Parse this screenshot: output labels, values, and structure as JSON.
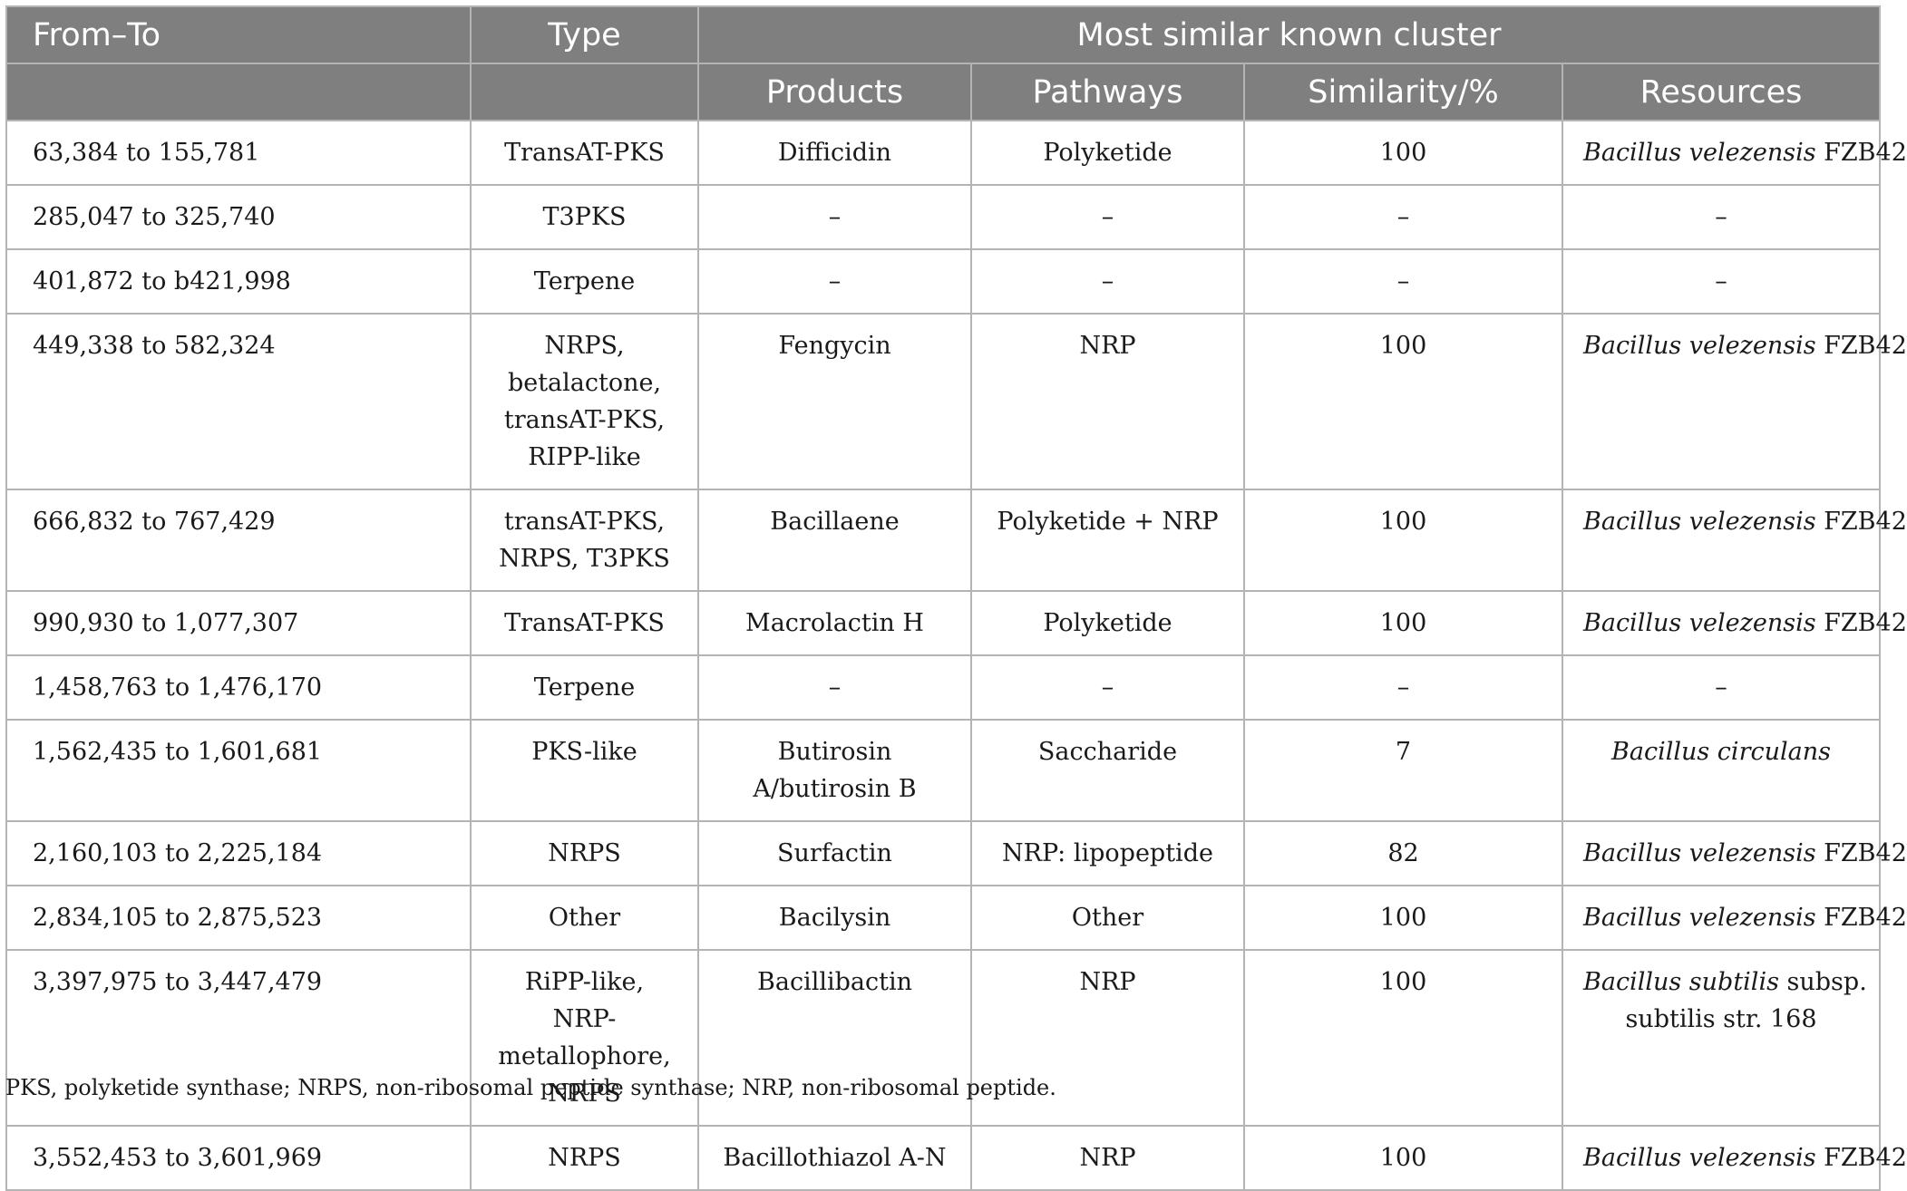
{
  "header": {
    "from_to": "From–To",
    "type": "Type",
    "group": "Most similar known cluster",
    "products": "Products",
    "pathways": "Pathways",
    "similarity": "Similarity/%",
    "resources": "Resources"
  },
  "rows": [
    {
      "from_to": "63,384 to 155,781",
      "type": "TransAT-PKS",
      "products": "Difficidin",
      "pathways": "Polyketide",
      "similarity": "100",
      "res_italic": "Bacillus velezensis",
      "res_plain": " FZB42",
      "res_line2": ""
    },
    {
      "from_to": "285,047 to 325,740",
      "type": "T3PKS",
      "products": "–",
      "pathways": "–",
      "similarity": "–",
      "res_italic": "",
      "res_plain": "–",
      "res_line2": ""
    },
    {
      "from_to": "401,872 to b421,998",
      "type": "Terpene",
      "products": "–",
      "pathways": "–",
      "similarity": "–",
      "res_italic": "",
      "res_plain": "–",
      "res_line2": ""
    },
    {
      "from_to": "449,338 to 582,324",
      "type": "NRPS,\nbetalactone,\ntransAT-PKS,\nRIPP-like",
      "products": "Fengycin",
      "pathways": "NRP",
      "similarity": "100",
      "res_italic": "Bacillus velezensis",
      "res_plain": " FZB42",
      "res_line2": ""
    },
    {
      "from_to": "666,832 to 767,429",
      "type": "transAT-PKS,\nNRPS, T3PKS",
      "products": "Bacillaene",
      "pathways": "Polyketide + NRP",
      "similarity": "100",
      "res_italic": "Bacillus velezensis",
      "res_plain": " FZB42",
      "res_line2": ""
    },
    {
      "from_to": "990,930 to 1,077,307",
      "type": "TransAT-PKS",
      "products": "Macrolactin H",
      "pathways": "Polyketide",
      "similarity": "100",
      "res_italic": "Bacillus velezensis",
      "res_plain": " FZB42",
      "res_line2": ""
    },
    {
      "from_to": "1,458,763 to 1,476,170",
      "type": "Terpene",
      "products": "–",
      "pathways": "–",
      "similarity": "–",
      "res_italic": "",
      "res_plain": "–",
      "res_line2": ""
    },
    {
      "from_to": "1,562,435 to 1,601,681",
      "type": "PKS-like",
      "products": "Butirosin\nA/butirosin B",
      "pathways": "Saccharide",
      "similarity": "7",
      "res_italic": "Bacillus circulans",
      "res_plain": "",
      "res_line2": ""
    },
    {
      "from_to": "2,160,103 to 2,225,184",
      "type": "NRPS",
      "products": "Surfactin",
      "pathways": "NRP: lipopeptide",
      "similarity": "82",
      "res_italic": "Bacillus velezensis",
      "res_plain": " FZB42",
      "res_line2": ""
    },
    {
      "from_to": "2,834,105 to 2,875,523",
      "type": "Other",
      "products": "Bacilysin",
      "pathways": "Other",
      "similarity": "100",
      "res_italic": "Bacillus velezensis",
      "res_plain": " FZB42",
      "res_line2": ""
    },
    {
      "from_to": "3,397,975 to 3,447,479",
      "type": "RiPP-like, NRP-\nmetallophore,\nNRPS",
      "products": "Bacillibactin",
      "pathways": "NRP",
      "similarity": "100",
      "res_italic": "Bacillus subtilis",
      "res_plain": " subsp.",
      "res_line2": "subtilis str. 168"
    },
    {
      "from_to": "3,552,453 to 3,601,969",
      "type": "NRPS",
      "products": "Bacillothiazol A-N",
      "pathways": "NRP",
      "similarity": "100",
      "res_italic": "Bacillus velezensis",
      "res_plain": " FZB42",
      "res_line2": ""
    }
  ],
  "footnote": "PKS, polyketide synthase; NRPS, non-ribosomal peptide synthase; NRP, non-ribosomal peptide."
}
